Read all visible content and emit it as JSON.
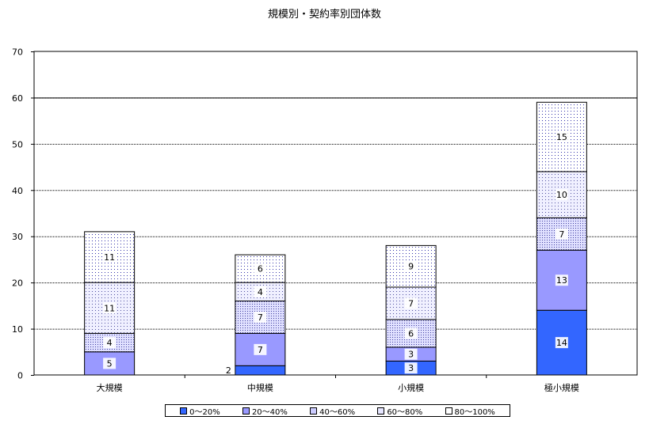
{
  "chart_data": {
    "type": "bar",
    "stacked": true,
    "title": "規模別・契約率別団体数",
    "xlabel": "",
    "ylabel": "",
    "ylim": [
      0,
      70
    ],
    "yticks": [
      0,
      10,
      20,
      30,
      40,
      50,
      60,
      70
    ],
    "grid": true,
    "legend_position": "bottom",
    "categories": [
      "大規模",
      "中規模",
      "小規模",
      "極小規模"
    ],
    "series": [
      {
        "name": "0～20%",
        "values": [
          0,
          2,
          3,
          14
        ],
        "color": "#3366ff",
        "pattern": "solid"
      },
      {
        "name": "20～40%",
        "values": [
          5,
          7,
          3,
          13
        ],
        "color": "#9999ff",
        "pattern": "solid"
      },
      {
        "name": "40～60%",
        "values": [
          4,
          7,
          6,
          7
        ],
        "color": "#ccccff",
        "pattern": "dots"
      },
      {
        "name": "60～80%",
        "values": [
          11,
          4,
          7,
          10
        ],
        "color": "#e6e6ff",
        "pattern": "dots"
      },
      {
        "name": "80～100%",
        "values": [
          11,
          6,
          9,
          15
        ],
        "color": "#ffffff",
        "pattern": "sparse-dots"
      }
    ]
  }
}
